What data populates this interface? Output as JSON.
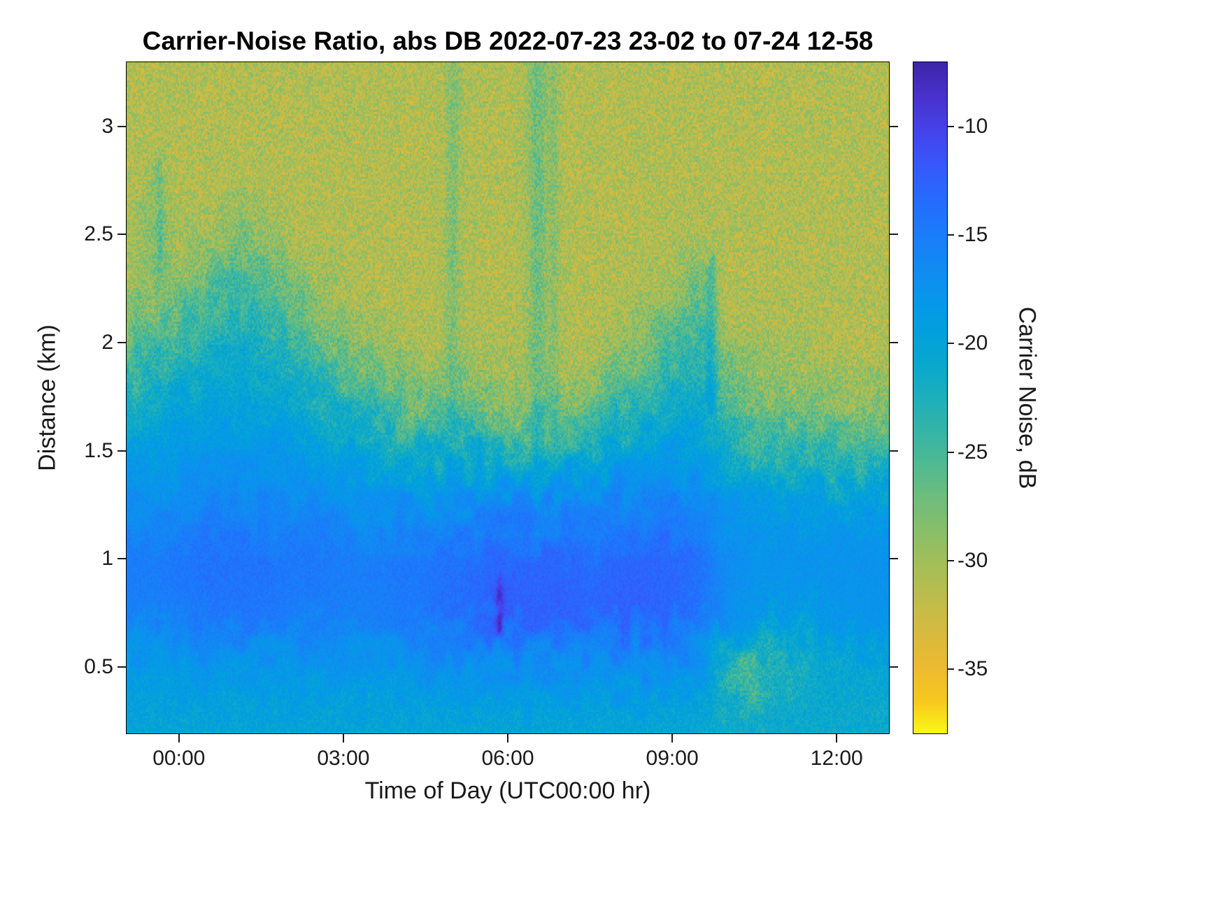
{
  "title": "Carrier-Noise Ratio, abs DB 2022-07-23 23-02 to 07-24 12-58",
  "axes": {
    "x": {
      "label": "Time of Day (UTC00:00 hr)",
      "ticks": [
        {
          "value": 0,
          "label": "00:00"
        },
        {
          "value": 3,
          "label": "03:00"
        },
        {
          "value": 6,
          "label": "06:00"
        },
        {
          "value": 9,
          "label": "09:00"
        },
        {
          "value": 12,
          "label": "12:00"
        }
      ]
    },
    "y": {
      "label": "Distance (km)",
      "ticks": [
        {
          "value": 0.5,
          "label": "0.5"
        },
        {
          "value": 1,
          "label": "1"
        },
        {
          "value": 1.5,
          "label": "1.5"
        },
        {
          "value": 2,
          "label": "2"
        },
        {
          "value": 2.5,
          "label": "2.5"
        },
        {
          "value": 3,
          "label": "3"
        }
      ]
    }
  },
  "colorbar": {
    "label": "Carrier Noise, dB",
    "ticks": [
      {
        "value": -10,
        "label": "-10"
      },
      {
        "value": -15,
        "label": "-15"
      },
      {
        "value": -20,
        "label": "-20"
      },
      {
        "value": -25,
        "label": "-25"
      },
      {
        "value": -30,
        "label": "-30"
      },
      {
        "value": -35,
        "label": "-35"
      }
    ],
    "colormap_stops": [
      "#3E26A8",
      "#4831CD",
      "#4543EA",
      "#3857FA",
      "#276AFD",
      "#1B7BFA",
      "#1289F3",
      "#0896EB",
      "#01A0DD",
      "#0AA8CD",
      "#1EAFBA",
      "#36B5A5",
      "#52BA90",
      "#70BD7B",
      "#8BBE68",
      "#A7BE57",
      "#C0BC4B",
      "#D8BA3E",
      "#EDBA30",
      "#F7C81F",
      "#F9FB14"
    ]
  },
  "chart_data": {
    "type": "heatmap",
    "title": "Carrier-Noise Ratio, abs DB 2022-07-23 23-02 to 07-24 12-58",
    "xlabel": "Time of Day (UTC00:00 hr)",
    "ylabel": "Distance (km)",
    "colorbar_label": "Carrier Noise, dB",
    "x_range": [
      -0.967,
      12.967
    ],
    "y_range": [
      0.19,
      3.3
    ],
    "value_range": [
      -38,
      -7
    ],
    "x_hours": [
      -1,
      -0.5,
      0,
      0.5,
      1,
      1.5,
      2,
      2.5,
      3,
      3.5,
      4,
      4.5,
      5,
      5.5,
      6,
      6.5,
      7,
      7.5,
      8,
      8.5,
      9,
      9.5,
      10,
      10.5,
      11,
      11.5,
      12,
      12.5,
      13
    ],
    "y_km": [
      0.25,
      0.5,
      0.75,
      1.0,
      1.25,
      1.5,
      1.75,
      2.0,
      2.25,
      2.5,
      2.75,
      3.0,
      3.25
    ],
    "values_db": [
      [
        -20,
        -20,
        -20,
        -20,
        -20,
        -20,
        -20,
        -20,
        -20,
        -20,
        -20,
        -20,
        -20,
        -20,
        -20,
        -20,
        -20,
        -20,
        -20,
        -20,
        -20,
        -20.5,
        -21,
        -21,
        -21,
        -21,
        -21,
        -21,
        -21
      ],
      [
        -18.5,
        -18.5,
        -18,
        -18,
        -18,
        -18,
        -18,
        -18,
        -18,
        -18,
        -18,
        -17.5,
        -17.5,
        -17.5,
        -17,
        -17,
        -17,
        -17,
        -17,
        -17,
        -17,
        -17.5,
        -22,
        -22.5,
        -21,
        -20.5,
        -20.5,
        -20.5,
        -20
      ],
      [
        -15.5,
        -15.5,
        -15,
        -14.5,
        -14.5,
        -14.5,
        -15,
        -15,
        -15.5,
        -15.5,
        -15,
        -14.5,
        -13.5,
        -13,
        -12,
        -12.5,
        -12.5,
        -13,
        -12.5,
        -12.5,
        -13,
        -14,
        -17,
        -18.5,
        -18.5,
        -18.5,
        -18,
        -18,
        -17.5
      ],
      [
        -15,
        -15,
        -14.5,
        -14,
        -14,
        -14,
        -14.5,
        -14.5,
        -15,
        -15,
        -14.5,
        -14.5,
        -14,
        -13.5,
        -13,
        -13,
        -13,
        -13.5,
        -13,
        -13,
        -13,
        -14,
        -16.5,
        -17.5,
        -17.5,
        -17.5,
        -17.5,
        -17.5,
        -17
      ],
      [
        -17,
        -17,
        -16.5,
        -16,
        -16,
        -16,
        -16.5,
        -16.5,
        -17,
        -17.5,
        -17.5,
        -17.5,
        -17,
        -16.5,
        -16,
        -16.5,
        -16,
        -16,
        -15.5,
        -15.5,
        -15.5,
        -16,
        -18,
        -18.5,
        -19,
        -19,
        -19,
        -19,
        -19
      ],
      [
        -19,
        -19,
        -18.5,
        -18,
        -18,
        -18.5,
        -18.5,
        -19,
        -19.5,
        -20.5,
        -21.5,
        -22,
        -22.5,
        -22,
        -23,
        -24.5,
        -23.5,
        -22,
        -20.5,
        -19.5,
        -19,
        -19,
        -22,
        -23,
        -24,
        -24,
        -24.5,
        -24.5,
        -24.5
      ],
      [
        -22,
        -21.5,
        -20.5,
        -20,
        -20,
        -20.5,
        -21,
        -22,
        -23.5,
        -25.5,
        -27,
        -28,
        -28.5,
        -28,
        -29,
        -29.5,
        -29,
        -28,
        -26,
        -23.5,
        -22,
        -21.5,
        -26,
        -28,
        -28.5,
        -28.5,
        -29,
        -29,
        -29
      ],
      [
        -27,
        -25,
        -24,
        -22.5,
        -22,
        -22.5,
        -23.5,
        -26,
        -28,
        -29.5,
        -30.5,
        -31,
        -30.5,
        -30.5,
        -31,
        -30,
        -31,
        -31,
        -30,
        -27.5,
        -25.5,
        -24,
        -29.5,
        -30.5,
        -30.5,
        -30.5,
        -31,
        -31,
        -31
      ],
      [
        -30,
        -29.5,
        -28.5,
        -26,
        -24.5,
        -25,
        -27,
        -29.5,
        -30.5,
        -31,
        -31,
        -31,
        -30.5,
        -31,
        -31,
        -30,
        -31,
        -31,
        -31,
        -30.5,
        -29.5,
        -27.5,
        -31,
        -31,
        -31,
        -31,
        -31,
        -31,
        -31
      ],
      [
        -30.5,
        -28.5,
        -30.5,
        -30,
        -28.5,
        -29,
        -30.5,
        -31,
        -31,
        -31,
        -31,
        -31,
        -30.5,
        -31,
        -31,
        -30,
        -31,
        -31,
        -31,
        -31,
        -31,
        -30.5,
        -31,
        -31,
        -31,
        -31,
        -31,
        -31,
        -31
      ],
      [
        -31,
        -30,
        -31,
        -31,
        -31,
        -31,
        -31,
        -31,
        -31,
        -31,
        -31,
        -31,
        -30.5,
        -31,
        -31,
        -30,
        -31,
        -31,
        -31,
        -31,
        -31,
        -31,
        -31,
        -31,
        -31,
        -31,
        -31,
        -31,
        -31
      ],
      [
        -31,
        -31,
        -31,
        -31,
        -31,
        -31,
        -31,
        -31,
        -31,
        -31,
        -31,
        -31,
        -30.5,
        -31,
        -31,
        -30,
        -31,
        -31,
        -31,
        -31,
        -31,
        -31,
        -31,
        -31,
        -31,
        -31,
        -31,
        -31,
        -31
      ],
      [
        -31,
        -31,
        -31,
        -31,
        -31,
        -31,
        -31,
        -31,
        -31,
        -31,
        -31,
        -31,
        -30.5,
        -31,
        -31,
        -30,
        -31,
        -31,
        -31,
        -31,
        -31,
        -31,
        -31,
        -31,
        -31,
        -31,
        -31,
        -31,
        -31
      ]
    ],
    "features": {
      "streaks": [
        {
          "t": 5.0,
          "sigma_t": 0.09,
          "y0": 1.6,
          "y1": 3.35,
          "amount": 2.2
        },
        {
          "t": 6.55,
          "sigma_t": 0.11,
          "y0": 1.45,
          "y1": 3.35,
          "amount": 3.0
        },
        {
          "t": 6.85,
          "sigma_t": 0.07,
          "y0": 1.5,
          "y1": 3.35,
          "amount": 2.0
        },
        {
          "t": -0.35,
          "sigma_t": 0.07,
          "y0": 2.3,
          "y1": 2.8,
          "amount": 2.6
        },
        {
          "t": 9.7,
          "sigma_t": 0.08,
          "y0": 1.75,
          "y1": 2.3,
          "amount": 4.0
        }
      ],
      "spots": [
        {
          "t": 5.85,
          "y": 0.8,
          "sigma_t": 0.05,
          "sigma_y": 0.1,
          "amount": 4.5
        },
        {
          "t": 10.3,
          "y": 0.45,
          "sigma_t": 0.3,
          "sigma_y": 0.12,
          "amount": -3.0
        },
        {
          "t": 11.2,
          "y": 0.5,
          "sigma_t": 0.25,
          "sigma_y": 0.1,
          "amount": -2.0
        }
      ]
    }
  }
}
